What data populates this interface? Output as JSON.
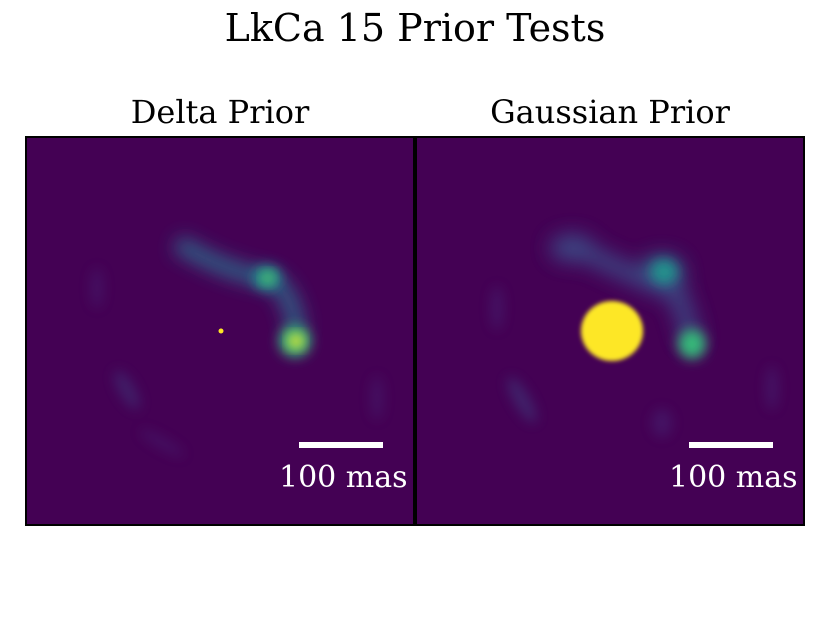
{
  "figure": {
    "title": "LkCa 15 Prior Tests",
    "colors": {
      "background": "#440154",
      "teal": "#21918c",
      "green": "#35b779",
      "yellow": "#fde725",
      "frame": "#000000"
    },
    "panels": [
      {
        "title": "Delta Prior",
        "scalebar_label": "100 mas"
      },
      {
        "title": "Gaussian Prior",
        "scalebar_label": "100 mas"
      }
    ]
  }
}
